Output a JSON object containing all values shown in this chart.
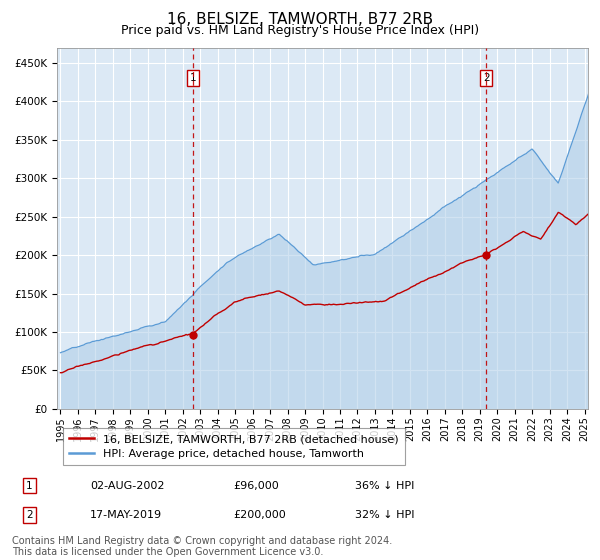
{
  "title": "16, BELSIZE, TAMWORTH, B77 2RB",
  "subtitle": "Price paid vs. HM Land Registry's House Price Index (HPI)",
  "x_start_year": 1995,
  "x_end_year": 2025,
  "y_min": 0,
  "y_max": 470000,
  "y_ticks": [
    0,
    50000,
    100000,
    150000,
    200000,
    250000,
    300000,
    350000,
    400000,
    450000
  ],
  "y_tick_labels": [
    "£0",
    "£50K",
    "£100K",
    "£150K",
    "£200K",
    "£250K",
    "£300K",
    "£350K",
    "£400K",
    "£450K"
  ],
  "background_color": "#ffffff",
  "plot_bg_color": "#dce9f5",
  "grid_color": "#ffffff",
  "hpi_line_color": "#5b9bd5",
  "hpi_fill_color": "#aecde8",
  "price_line_color": "#c00000",
  "marker_color": "#c00000",
  "vline_color": "#c00000",
  "legend_label_price": "16, BELSIZE, TAMWORTH, B77 2RB (detached house)",
  "legend_label_hpi": "HPI: Average price, detached house, Tamworth",
  "sale1_year": 2002.58,
  "sale1_price": 96000,
  "sale1_label": "02-AUG-2002",
  "sale1_pct": "36% ↓ HPI",
  "sale2_year": 2019.37,
  "sale2_price": 200000,
  "sale2_label": "17-MAY-2019",
  "sale2_pct": "32% ↓ HPI",
  "footer": "Contains HM Land Registry data © Crown copyright and database right 2024.\nThis data is licensed under the Open Government Licence v3.0.",
  "title_fontsize": 11,
  "subtitle_fontsize": 9,
  "axis_fontsize": 7.5,
  "legend_fontsize": 8,
  "footer_fontsize": 7
}
